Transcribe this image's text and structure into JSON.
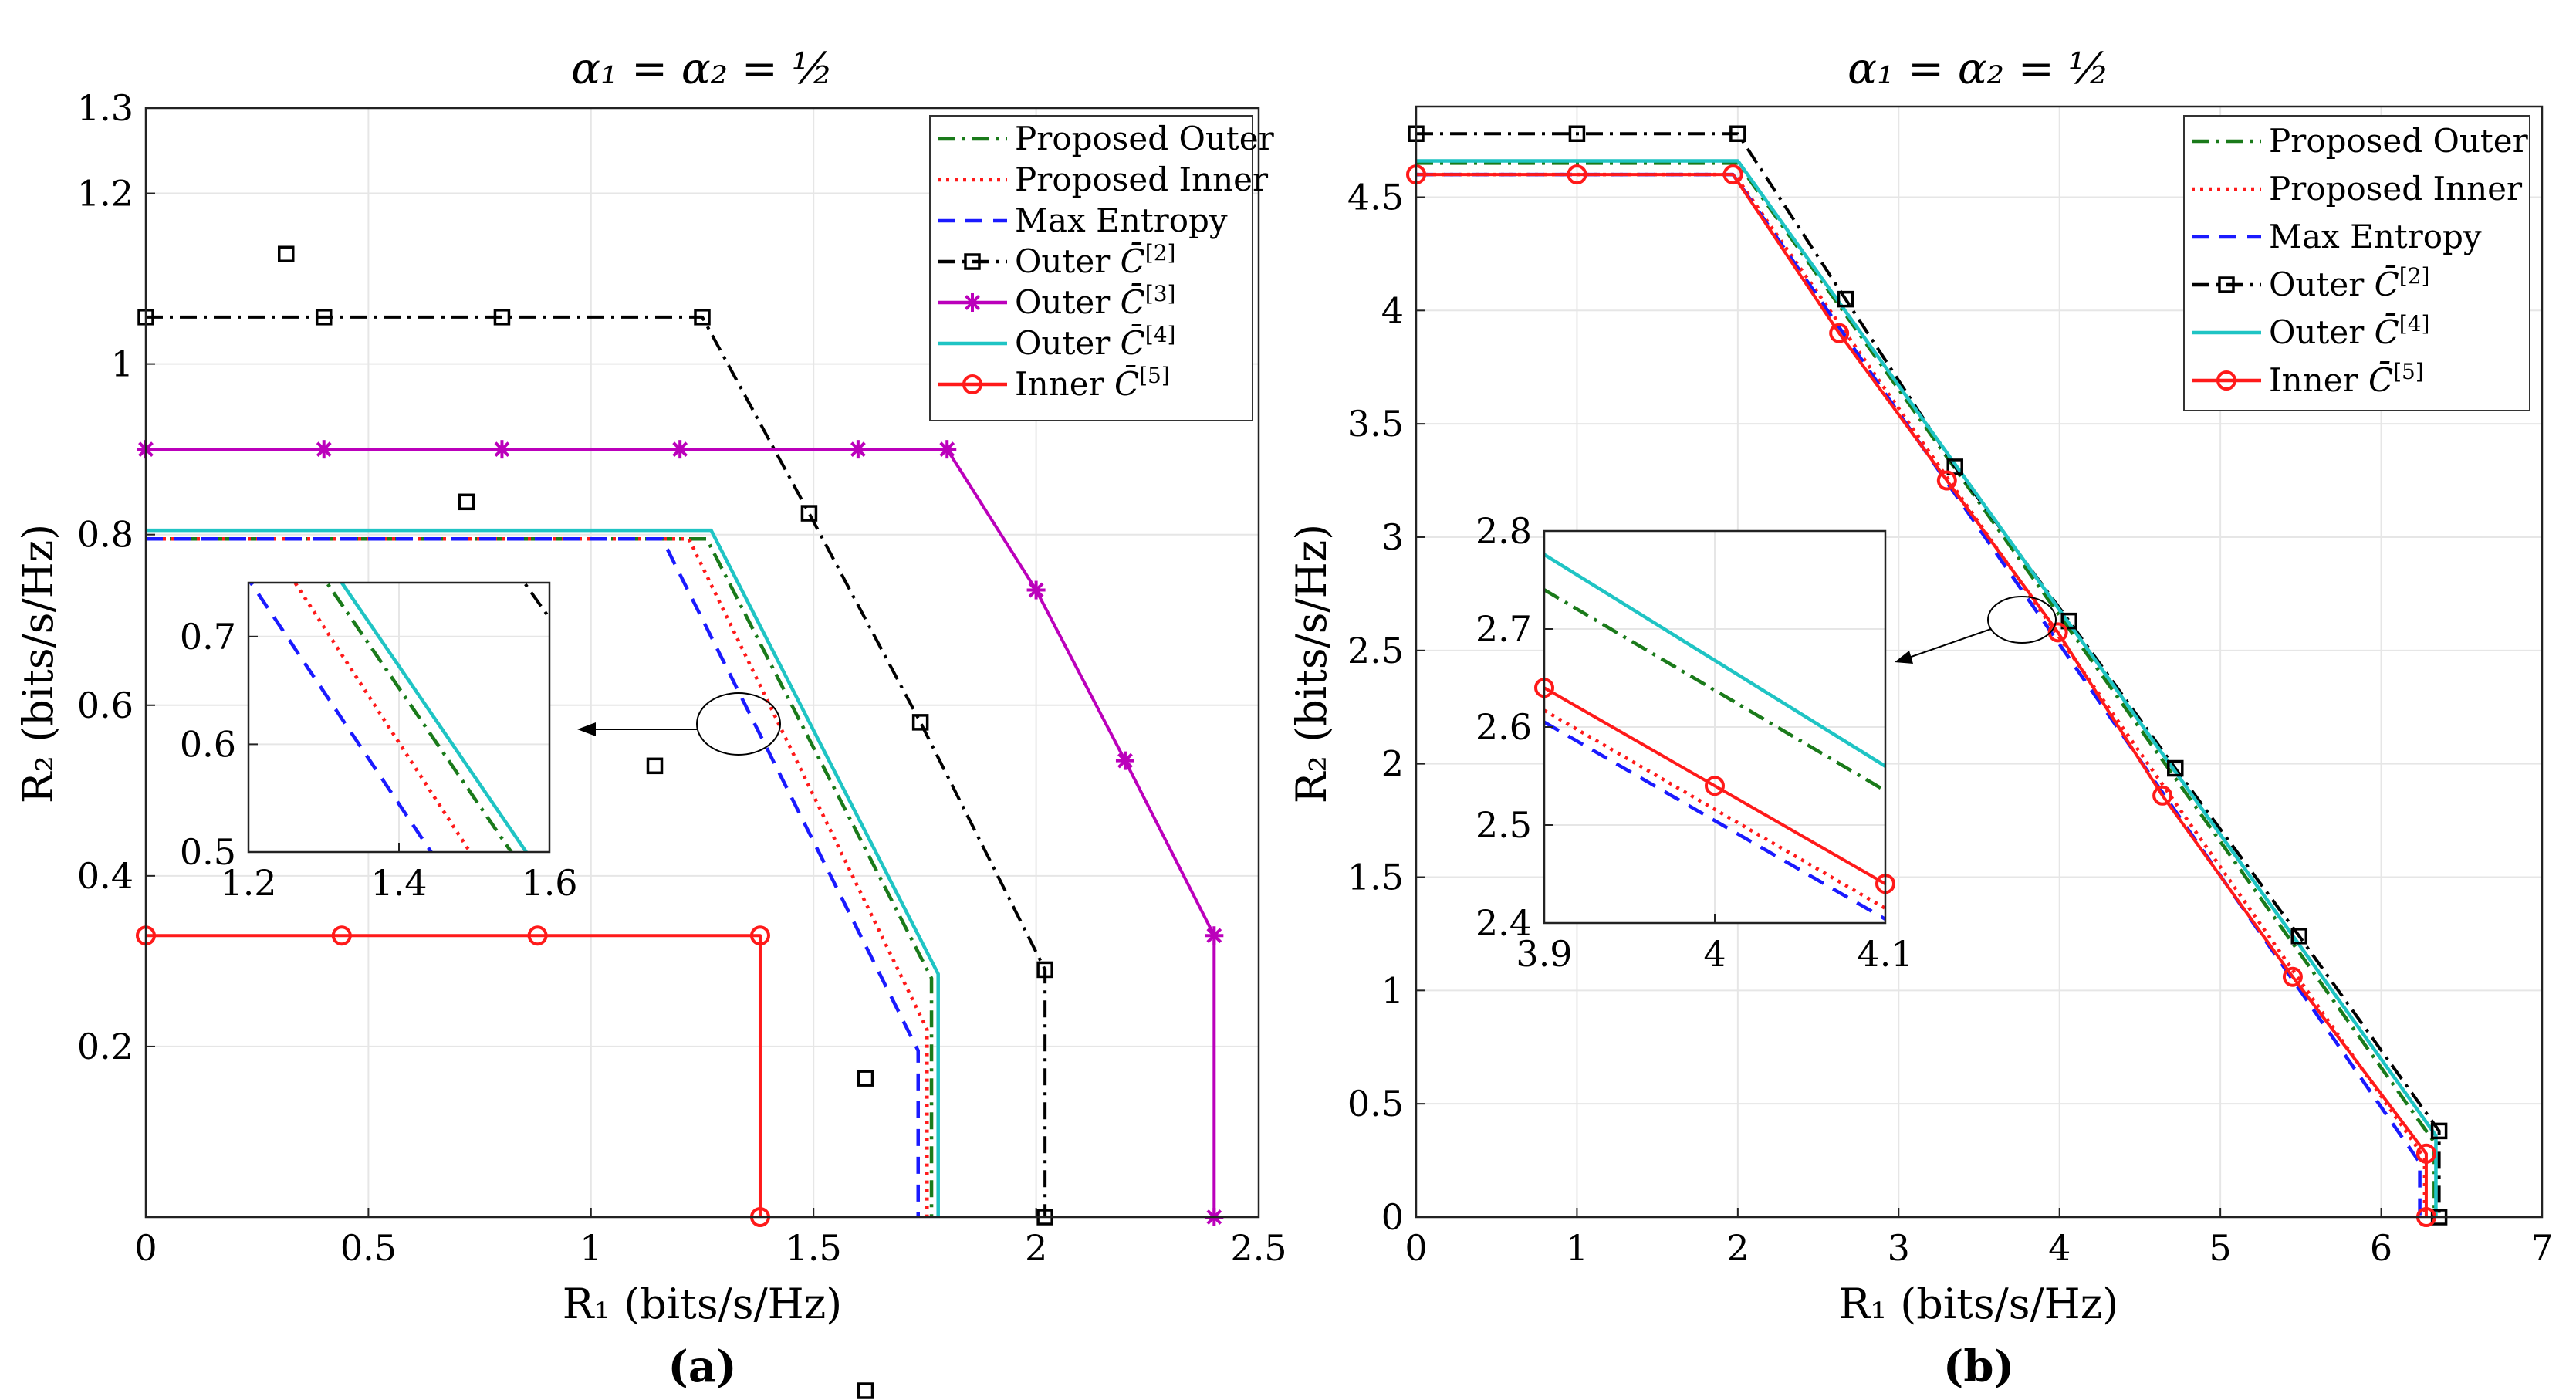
{
  "chart_data": [
    {
      "type": "line",
      "panel_label": "(a)",
      "title": "α₁ = α₂ = ½",
      "xlabel": "R₁ (bits/s/Hz)",
      "ylabel": "R₂ (bits/s/Hz)",
      "xlim": [
        0,
        2.5
      ],
      "ylim": [
        0,
        1.3
      ],
      "xticks": [
        0,
        0.5,
        1,
        1.5,
        2,
        2.5
      ],
      "xtick_labels": [
        "0",
        "0.5",
        "1",
        "1.5",
        "2",
        "2.5"
      ],
      "yticks": [
        0.2,
        0.4,
        0.6,
        0.8,
        1.0,
        1.2,
        1.3
      ],
      "ytick_labels": [
        "0.2",
        "0.4",
        "0.6",
        "0.8",
        "1",
        "1.2",
        "1.3"
      ],
      "legend_position": "top-right",
      "series": [
        {
          "name": "Proposed Outer",
          "color": "#1a7a1a",
          "dash": "dashdot",
          "marker": "none",
          "x": [
            0,
            1.26,
            1.765,
            1.765
          ],
          "y": [
            0.795,
            0.795,
            0.28,
            0
          ]
        },
        {
          "name": "Proposed Inner",
          "color": "#ff1a1a",
          "dash": "dotted",
          "marker": "none",
          "x": [
            0,
            1.22,
            1.755,
            1.755
          ],
          "y": [
            0.795,
            0.795,
            0.22,
            0
          ]
        },
        {
          "name": "Max Entropy",
          "color": "#1a1aff",
          "dash": "dashed",
          "marker": "none",
          "x": [
            0,
            1.16,
            1.735,
            1.735
          ],
          "y": [
            0.795,
            0.795,
            0.195,
            0
          ]
        },
        {
          "name": "Outer C̄[2]",
          "color": "#000000",
          "dash": "dashdot",
          "marker": "square",
          "x": [
            0,
            0.4,
            0.8,
            1.25,
            1.49,
            1.74,
            2.02,
            2.02
          ],
          "y": [
            1.055,
            1.055,
            1.055,
            1.055,
            0.825,
            0.58,
            0.29,
            0.0
          ],
          "marker_x": [
            0,
            0.4,
            0.8,
            1.25,
            1.49,
            1.74,
            2.02,
            2.02
          ],
          "marker_y": [
            1.055,
            1.055,
            1.055,
            1.055,
            0.825,
            0.58,
            0.29,
            0.0
          ]
        },
        {
          "name": "Outer C̄[3]",
          "color": "#bb00bb",
          "dash": "solid",
          "marker": "star",
          "x": [
            0,
            0.4,
            0.8,
            1.2,
            1.6,
            1.8,
            2.0,
            2.2,
            2.4,
            2.4
          ],
          "y": [
            0.9,
            0.9,
            0.9,
            0.9,
            0.9,
            0.9,
            0.735,
            0.535,
            0.33,
            0.0
          ],
          "marker_x": [
            0,
            0.4,
            0.8,
            1.2,
            1.6,
            1.8,
            2.0,
            2.2,
            2.4,
            2.4
          ],
          "marker_y": [
            0.9,
            0.9,
            0.9,
            0.9,
            0.9,
            0.9,
            0.735,
            0.535,
            0.33,
            0.0
          ]
        },
        {
          "name": "Outer C̄[4]",
          "color": "#1fc4c4",
          "dash": "solid",
          "marker": "none",
          "x": [
            0,
            1.27,
            1.78,
            1.78
          ],
          "y": [
            0.805,
            0.805,
            0.285,
            0
          ]
        },
        {
          "name": "Inner C̄[5]",
          "color": "#ff1a1a",
          "dash": "solid",
          "marker": "circle",
          "x": [
            0,
            0.44,
            0.88,
            1.38,
            1.38,
            1.38
          ],
          "y": [
            0.33,
            0.33,
            0.33,
            0.33,
            0.33,
            0.0
          ],
          "marker_x": [
            0,
            0.44,
            0.88,
            1.38,
            1.38
          ],
          "marker_y": [
            0.33,
            0.33,
            0.33,
            0.33,
            0.0
          ]
        }
      ],
      "inset": {
        "xlim": [
          1.2,
          1.6
        ],
        "ylim": [
          0.5,
          0.75
        ],
        "xticks": [
          1.2,
          1.4,
          1.6
        ],
        "xtick_labels": [
          "1.2",
          "1.4",
          "1.6"
        ],
        "yticks": [
          0.5,
          0.6,
          0.7
        ],
        "ytick_labels": [
          "0.5",
          "0.6",
          "0.7"
        ]
      }
    },
    {
      "type": "line",
      "panel_label": "(b)",
      "title": "α₁ = α₂ = ½",
      "xlabel": "R₁ (bits/s/Hz)",
      "ylabel": "R₂ (bits/s/Hz)",
      "xlim": [
        0,
        7
      ],
      "ylim": [
        0,
        4.9
      ],
      "xticks": [
        0,
        1,
        2,
        3,
        4,
        5,
        6,
        7
      ],
      "xtick_labels": [
        "0",
        "1",
        "2",
        "3",
        "4",
        "5",
        "6",
        "7"
      ],
      "yticks": [
        0,
        0.5,
        1,
        1.5,
        2,
        2.5,
        3,
        3.5,
        4,
        4.5
      ],
      "ytick_labels": [
        "0",
        "0.5",
        "1",
        "1.5",
        "2",
        "2.5",
        "3",
        "3.5",
        "4",
        "4.5"
      ],
      "legend_position": "top-right",
      "series": [
        {
          "name": "Proposed Outer",
          "color": "#1a7a1a",
          "dash": "dashdot",
          "marker": "none",
          "x": [
            0,
            2,
            6.33,
            6.33
          ],
          "y": [
            4.65,
            4.65,
            0.33,
            0
          ]
        },
        {
          "name": "Proposed Inner",
          "color": "#ff1a1a",
          "dash": "dotted",
          "marker": "none",
          "x": [
            0,
            1.98,
            6.27,
            6.27
          ],
          "y": [
            4.6,
            4.6,
            0.26,
            0
          ]
        },
        {
          "name": "Max Entropy",
          "color": "#1a1aff",
          "dash": "dashed",
          "marker": "none",
          "x": [
            0,
            1.97,
            6.24,
            6.24
          ],
          "y": [
            4.6,
            4.6,
            0.24,
            0
          ]
        },
        {
          "name": "Outer C̄[2]",
          "color": "#000000",
          "dash": "dashdot",
          "marker": "square",
          "x": [
            0,
            1,
            2,
            2.67,
            3.35,
            4.06,
            4.72,
            5.49,
            6.36,
            6.36
          ],
          "y": [
            4.78,
            4.78,
            4.78,
            4.05,
            3.31,
            2.63,
            1.98,
            1.24,
            0.38,
            0.0
          ],
          "marker_x": [
            0,
            1,
            2,
            2.67,
            3.35,
            4.06,
            4.72,
            5.49,
            6.36,
            6.36
          ],
          "marker_y": [
            4.78,
            4.78,
            4.78,
            4.05,
            3.31,
            2.63,
            1.98,
            1.24,
            0.38,
            0.0
          ]
        },
        {
          "name": "Outer C̄[4]",
          "color": "#1fc4c4",
          "dash": "solid",
          "marker": "none",
          "x": [
            0,
            2,
            6.34,
            6.34
          ],
          "y": [
            4.66,
            4.66,
            0.36,
            0
          ]
        },
        {
          "name": "Inner C̄[5]",
          "color": "#ff1a1a",
          "dash": "solid",
          "marker": "circle",
          "x": [
            0,
            1,
            1.97,
            2.63,
            3.3,
            3.99,
            4.64,
            5.45,
            6.28,
            6.28
          ],
          "y": [
            4.6,
            4.6,
            4.6,
            3.9,
            3.25,
            2.58,
            1.86,
            1.06,
            0.28,
            0.0
          ],
          "marker_x": [
            0,
            1,
            1.97,
            2.63,
            3.3,
            3.99,
            4.64,
            5.45,
            6.28,
            6.28
          ],
          "marker_y": [
            4.6,
            4.6,
            4.6,
            3.9,
            3.25,
            2.58,
            1.86,
            1.06,
            0.28,
            0.0
          ]
        }
      ],
      "inset": {
        "xlim": [
          3.9,
          4.1
        ],
        "ylim": [
          2.4,
          2.8
        ],
        "xticks": [
          3.9,
          4.0,
          4.1
        ],
        "xtick_labels": [
          "3.9",
          "4",
          "4.1"
        ],
        "yticks": [
          2.4,
          2.5,
          2.6,
          2.7,
          2.8
        ],
        "ytick_labels": [
          "2.4",
          "2.5",
          "2.6",
          "2.7",
          "2.8"
        ],
        "series": [
          {
            "name": "Outer C̄[4]",
            "x": [
              3.9,
              4.1
            ],
            "y": [
              2.776,
              2.56
            ]
          },
          {
            "name": "Proposed Outer",
            "x": [
              3.9,
              4.1
            ],
            "y": [
              2.74,
              2.535
            ]
          },
          {
            "name": "Inner C̄[5]",
            "x": [
              3.9,
              4.0,
              4.1
            ],
            "y": [
              2.64,
              2.54,
              2.44
            ],
            "marker_x": [
              3.9,
              4.0,
              4.1
            ],
            "marker_y": [
              2.64,
              2.54,
              2.44
            ]
          },
          {
            "name": "Proposed Inner",
            "x": [
              3.9,
              4.1
            ],
            "y": [
              2.617,
              2.415
            ]
          },
          {
            "name": "Max Entropy",
            "x": [
              3.9,
              4.1
            ],
            "y": [
              2.605,
              2.404
            ]
          }
        ]
      }
    }
  ]
}
